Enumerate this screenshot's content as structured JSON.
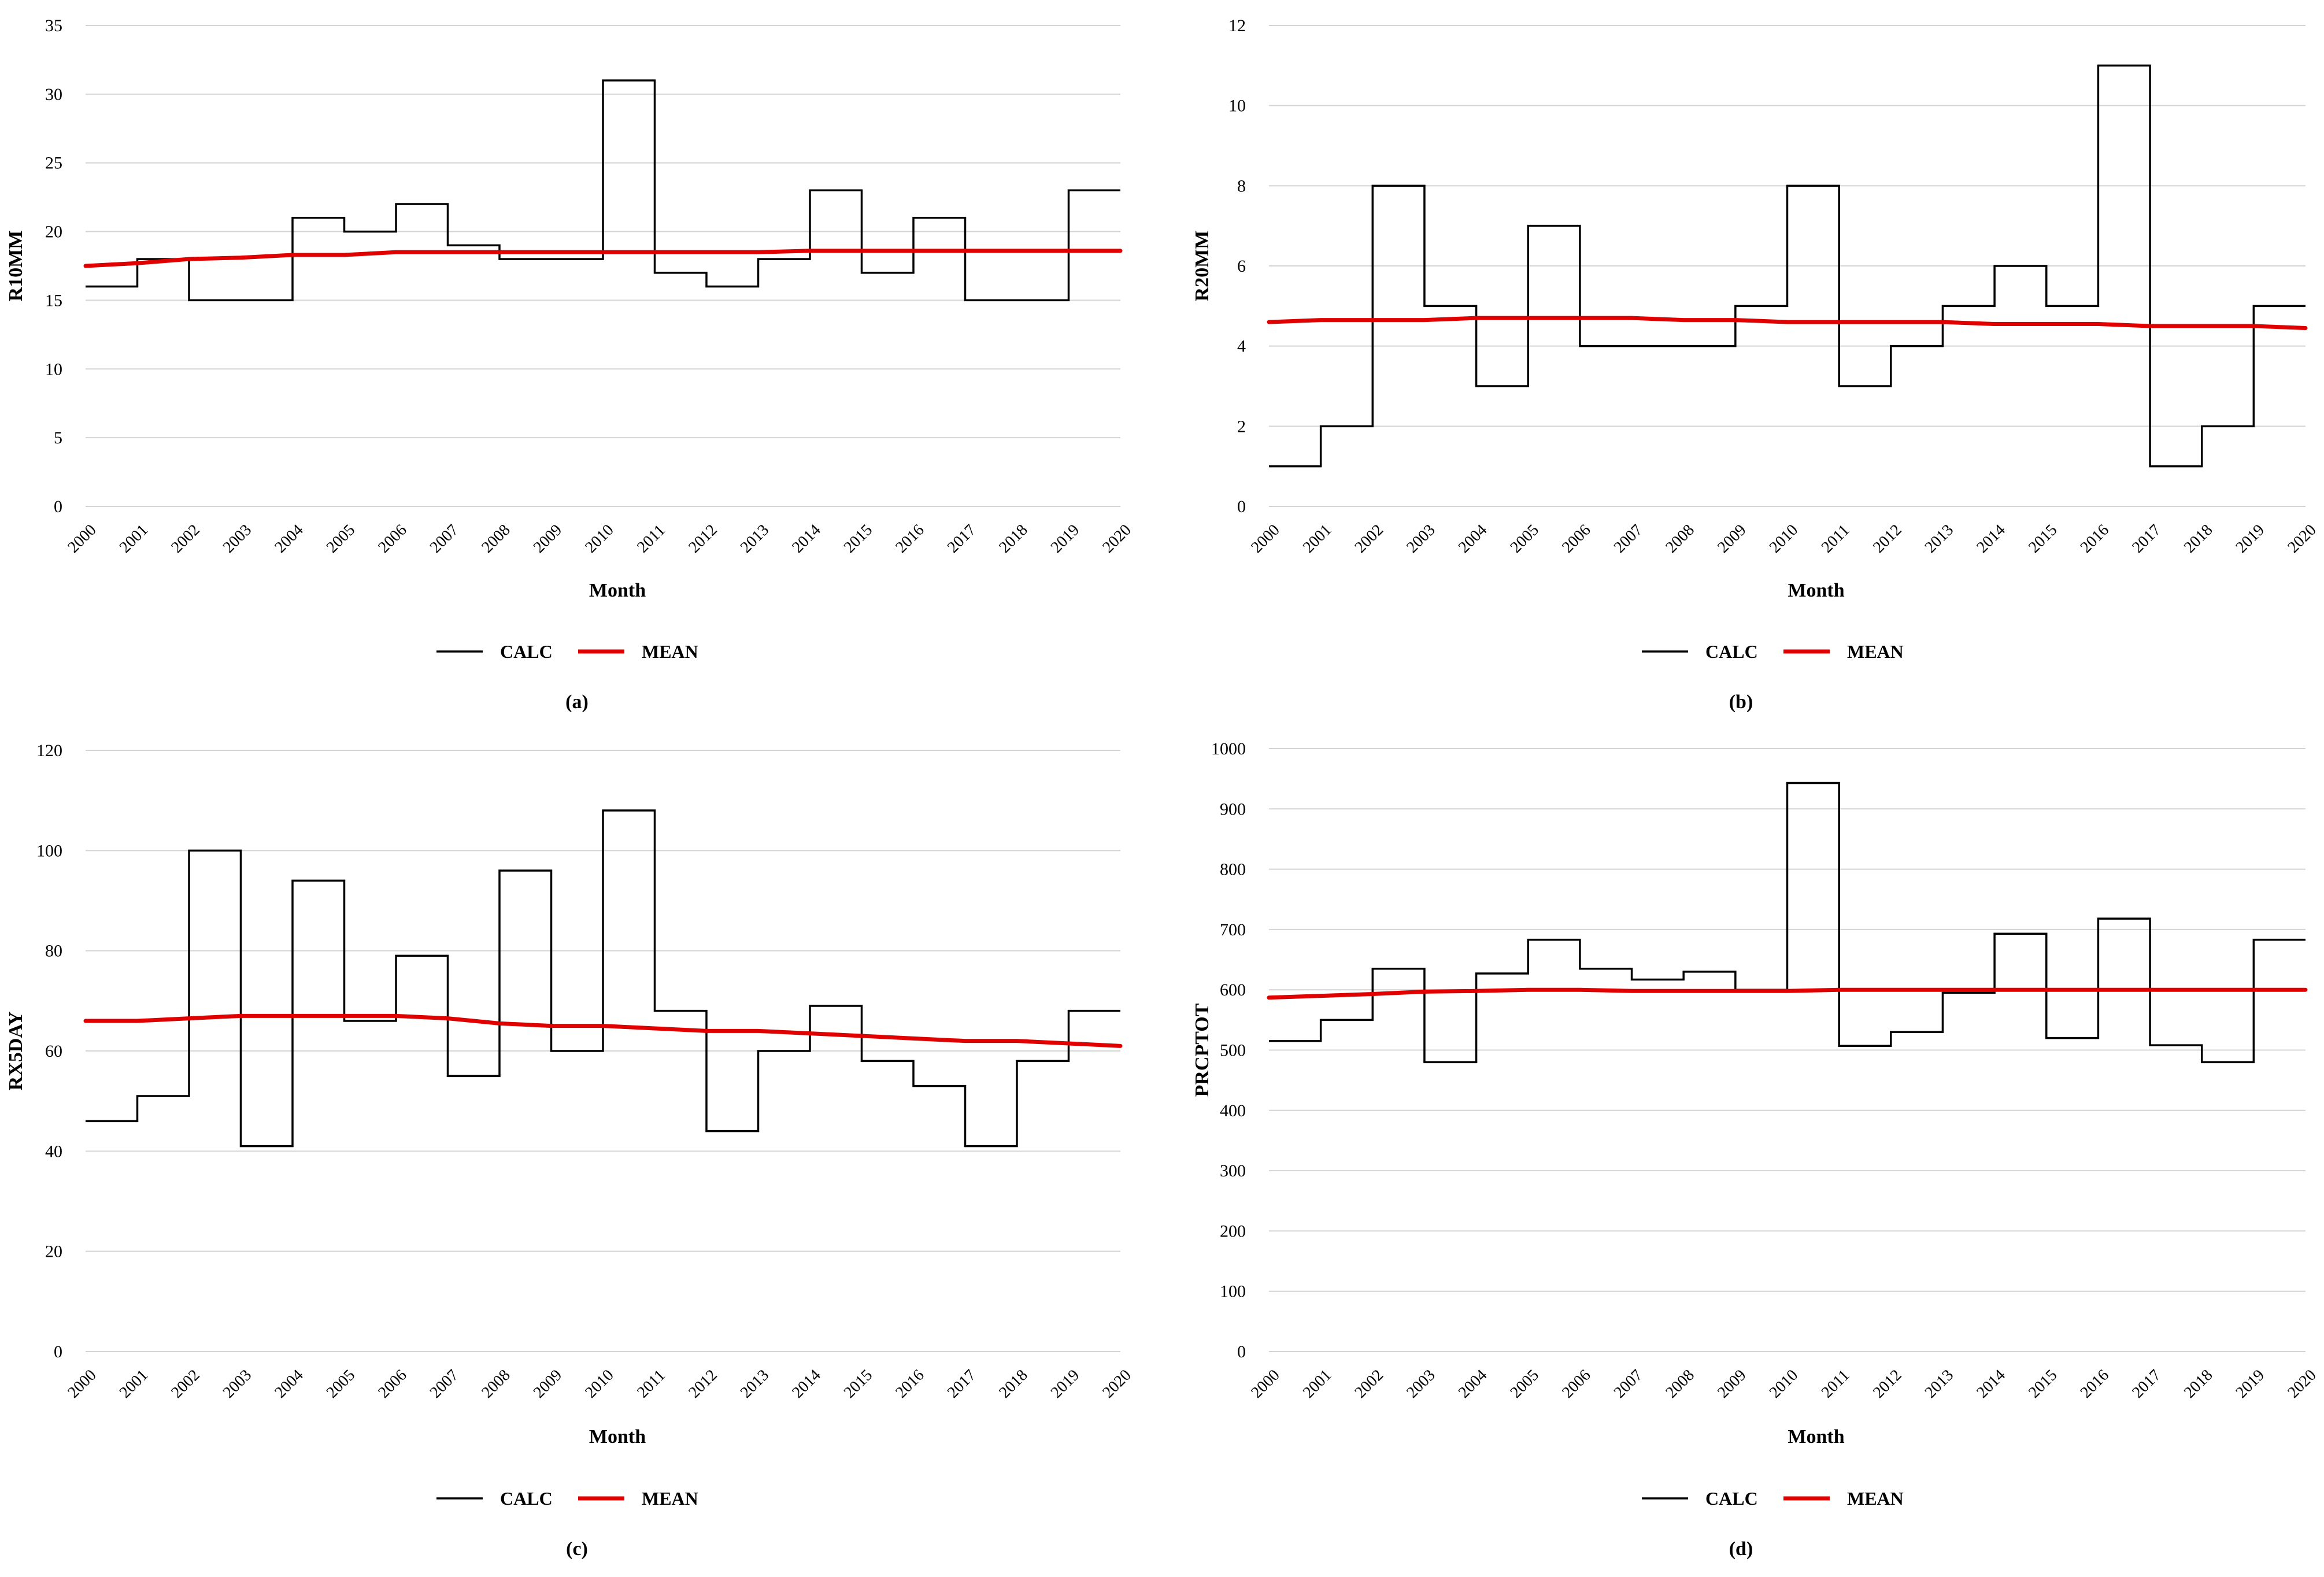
{
  "chart_data": [
    {
      "panel_label": "(a)",
      "type": "line",
      "ylabel": "R10MM",
      "xlabel": "Month",
      "ylim": [
        0,
        35
      ],
      "y_ticks": [
        "0",
        "5",
        "10",
        "15",
        "20",
        "25",
        "30",
        "35"
      ],
      "categories": [
        "2000",
        "2001",
        "2002",
        "2003",
        "2004",
        "2005",
        "2006",
        "2007",
        "2008",
        "2009",
        "2010",
        "2011",
        "2012",
        "2013",
        "2014",
        "2015",
        "2016",
        "2017",
        "2018",
        "2019",
        "2020"
      ],
      "grid": true,
      "legend_position": "bottom",
      "series": [
        {
          "name": "CALC",
          "style": "step",
          "color": "#000000",
          "values": [
            16,
            18,
            15,
            15,
            21,
            20,
            22,
            19,
            18,
            18,
            31,
            17,
            16,
            18,
            23,
            17,
            21,
            15,
            15,
            23,
            23
          ]
        },
        {
          "name": "MEAN",
          "style": "line",
          "color": "#e00000",
          "values": [
            17.5,
            17.7,
            18.0,
            18.1,
            18.3,
            18.3,
            18.5,
            18.5,
            18.5,
            18.5,
            18.5,
            18.5,
            18.5,
            18.5,
            18.6,
            18.6,
            18.6,
            18.6,
            18.6,
            18.6,
            18.6
          ]
        }
      ]
    },
    {
      "panel_label": "(b)",
      "type": "line",
      "ylabel": "R20MM",
      "xlabel": "Month",
      "ylim": [
        0,
        12
      ],
      "y_ticks": [
        "0",
        "2",
        "4",
        "6",
        "8",
        "10",
        "12"
      ],
      "categories": [
        "2000",
        "2001",
        "2002",
        "2003",
        "2004",
        "2005",
        "2006",
        "2007",
        "2008",
        "2009",
        "2010",
        "2011",
        "2012",
        "2013",
        "2014",
        "2015",
        "2016",
        "2017",
        "2018",
        "2019",
        "2020"
      ],
      "grid": true,
      "legend_position": "bottom",
      "series": [
        {
          "name": "CALC",
          "style": "step",
          "color": "#000000",
          "values": [
            1,
            2,
            8,
            5,
            3,
            7,
            4,
            4,
            4,
            5,
            8,
            3,
            4,
            5,
            6,
            5,
            11,
            1,
            2,
            5,
            5
          ]
        },
        {
          "name": "MEAN",
          "style": "line",
          "color": "#e00000",
          "values": [
            4.6,
            4.65,
            4.65,
            4.65,
            4.7,
            4.7,
            4.7,
            4.7,
            4.65,
            4.65,
            4.6,
            4.6,
            4.6,
            4.6,
            4.55,
            4.55,
            4.55,
            4.5,
            4.5,
            4.5,
            4.45
          ]
        }
      ]
    },
    {
      "panel_label": "(c)",
      "type": "line",
      "ylabel": "RX5DAY",
      "xlabel": "Month",
      "ylim": [
        0,
        120
      ],
      "y_ticks": [
        "0",
        "20",
        "40",
        "60",
        "80",
        "100",
        "120"
      ],
      "categories": [
        "2000",
        "2001",
        "2002",
        "2003",
        "2004",
        "2005",
        "2006",
        "2007",
        "2008",
        "2009",
        "2010",
        "2011",
        "2012",
        "2013",
        "2014",
        "2015",
        "2016",
        "2017",
        "2018",
        "2019",
        "2020"
      ],
      "grid": true,
      "legend_position": "bottom",
      "series": [
        {
          "name": "CALC",
          "style": "step",
          "color": "#000000",
          "values": [
            46,
            51,
            100,
            41,
            94,
            66,
            79,
            55,
            96,
            60,
            108,
            68,
            44,
            60,
            69,
            58,
            53,
            41,
            58,
            68,
            68
          ]
        },
        {
          "name": "MEAN",
          "style": "line",
          "color": "#e00000",
          "values": [
            66,
            66,
            66.5,
            67,
            67,
            67,
            67,
            66.5,
            65.5,
            65,
            65,
            64.5,
            64,
            64,
            63.5,
            63,
            62.5,
            62,
            62,
            61.5,
            61
          ]
        }
      ]
    },
    {
      "panel_label": "(d)",
      "type": "line",
      "ylabel": "PRCPTOT",
      "xlabel": "Month",
      "ylim": [
        0,
        1000
      ],
      "y_ticks": [
        "0",
        "100",
        "200",
        "300",
        "400",
        "500",
        "600",
        "700",
        "800",
        "900",
        "1000"
      ],
      "categories": [
        "2000",
        "2001",
        "2002",
        "2003",
        "2004",
        "2005",
        "2006",
        "2007",
        "2008",
        "2009",
        "2010",
        "2011",
        "2012",
        "2013",
        "2014",
        "2015",
        "2016",
        "2017",
        "2018",
        "2019",
        "2020"
      ],
      "grid": true,
      "legend_position": "bottom",
      "series": [
        {
          "name": "CALC",
          "style": "step",
          "color": "#000000",
          "values": [
            515,
            550,
            635,
            480,
            627,
            683,
            635,
            617,
            630,
            600,
            943,
            507,
            530,
            595,
            693,
            520,
            718,
            508,
            480,
            683,
            683
          ]
        },
        {
          "name": "MEAN",
          "style": "line",
          "color": "#e00000",
          "values": [
            587,
            590,
            593,
            597,
            598,
            600,
            600,
            598,
            598,
            598,
            598,
            600,
            600,
            600,
            600,
            600,
            600,
            600,
            600,
            600,
            600
          ]
        }
      ]
    }
  ]
}
